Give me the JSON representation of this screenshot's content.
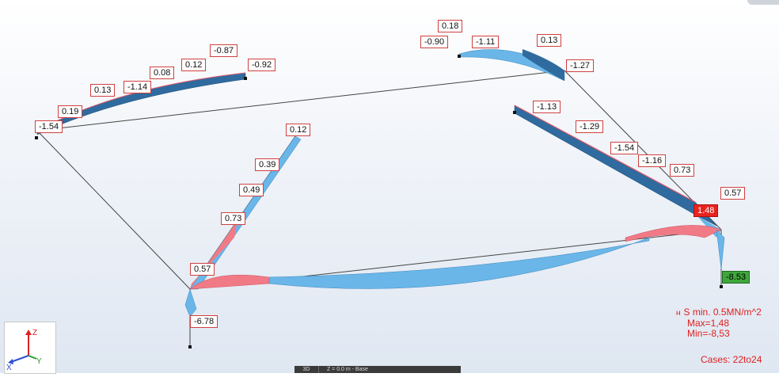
{
  "viewport": {
    "mode": "3D",
    "plane": "Z = 0.0 m - Base"
  },
  "legend": {
    "symbol": "S",
    "title": "S min. 0.5MN/m^2",
    "max": "Max=1,48",
    "min": "Min=-8,53",
    "cases": "Cases: 22to24",
    "color": "#e02020"
  },
  "axes": {
    "z": "Z",
    "x": "X",
    "y": "Y"
  },
  "colors": {
    "positive": "#f07b86",
    "negative": "#6ab6e8",
    "dark": "#2f6b9f"
  },
  "labels": [
    {
      "text": "-0.87"
    },
    {
      "text": "0.12"
    },
    {
      "text": "-0.92"
    },
    {
      "text": "0.08"
    },
    {
      "text": "0.13"
    },
    {
      "text": "-1.14"
    },
    {
      "text": "0.19"
    },
    {
      "text": "-1.54"
    },
    {
      "text": "0.18"
    },
    {
      "text": "-0.90"
    },
    {
      "text": "-1.11"
    },
    {
      "text": "0.13"
    },
    {
      "text": "-1.27"
    },
    {
      "text": "-1.13"
    },
    {
      "text": "-1.29"
    },
    {
      "text": "-1.54"
    },
    {
      "text": "-1.16"
    },
    {
      "text": "0.73"
    },
    {
      "text": "0.57"
    },
    {
      "text": "1.48"
    },
    {
      "text": "-8.53"
    },
    {
      "text": "0.12"
    },
    {
      "text": "0.39"
    },
    {
      "text": "0.49"
    },
    {
      "text": "0.73"
    },
    {
      "text": "0.57"
    },
    {
      "text": "-6.78"
    }
  ]
}
